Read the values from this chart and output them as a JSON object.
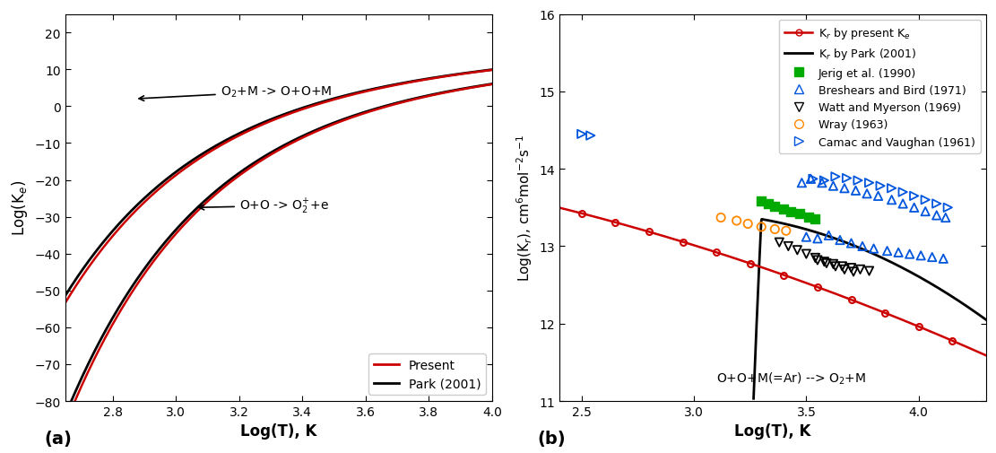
{
  "panel_a": {
    "xlim": [
      2.65,
      4.0
    ],
    "ylim": [
      -80,
      25
    ],
    "xlabel": "Log(T), K",
    "ylabel": "Log(K$_{e}$)",
    "xticks": [
      2.8,
      3.0,
      3.2,
      3.4,
      3.6,
      3.8,
      4.0
    ],
    "yticks": [
      -80,
      -70,
      -60,
      -50,
      -40,
      -30,
      -20,
      -10,
      0,
      10,
      20
    ],
    "label_a": "(a)",
    "legend_present": "Present",
    "legend_park": "Park (2001)",
    "annot1": "O$_{2}$+M -> O+O+M",
    "annot2": "O+O -> O$_{2}^{+}$+e"
  },
  "panel_b": {
    "xlim": [
      2.4,
      4.3
    ],
    "ylim": [
      11.0,
      16.0
    ],
    "xlabel": "Log(T), K",
    "ylabel": "Log(K$_{r}$), cm$^{6}$mol$^{-2}$s$^{-1}$",
    "xticks": [
      2.5,
      3.0,
      3.5,
      4.0
    ],
    "yticks": [
      11,
      12,
      13,
      14,
      15,
      16
    ],
    "label_b": "(b)",
    "annot_rxn": "O+O+M(=Ar) --> O$_{2}$+M"
  },
  "jerig_x": [
    3.3,
    3.33,
    3.36,
    3.4,
    3.43,
    3.47,
    3.51,
    3.54
  ],
  "jerig_y": [
    13.58,
    13.55,
    13.52,
    13.48,
    13.45,
    13.42,
    13.38,
    13.35
  ],
  "breshears_x": [
    3.48,
    3.52,
    3.57,
    3.62,
    3.67,
    3.72,
    3.77,
    3.82,
    3.88,
    3.93,
    3.98,
    4.03,
    4.08,
    4.12,
    3.5,
    3.55,
    3.6,
    3.65,
    3.7,
    3.75,
    3.8,
    3.86,
    3.91,
    3.96,
    4.01,
    4.06,
    4.11
  ],
  "breshears_y": [
    13.82,
    13.87,
    13.82,
    13.78,
    13.75,
    13.72,
    13.68,
    13.65,
    13.6,
    13.55,
    13.5,
    13.45,
    13.4,
    13.37,
    13.12,
    13.1,
    13.14,
    13.08,
    13.04,
    13.0,
    12.97,
    12.94,
    12.92,
    12.9,
    12.88,
    12.86,
    12.84
  ],
  "watt_x": [
    3.38,
    3.42,
    3.46,
    3.5,
    3.54,
    3.58,
    3.62,
    3.66,
    3.7,
    3.74,
    3.78,
    3.55,
    3.59,
    3.63,
    3.67,
    3.71
  ],
  "watt_y": [
    13.05,
    13.0,
    12.95,
    12.9,
    12.85,
    12.8,
    12.77,
    12.74,
    12.72,
    12.7,
    12.68,
    12.82,
    12.78,
    12.74,
    12.7,
    12.67
  ],
  "wray_x": [
    3.12,
    3.19,
    3.24,
    3.3,
    3.36,
    3.41
  ],
  "wray_y": [
    13.37,
    13.33,
    13.29,
    13.25,
    13.22,
    13.2
  ],
  "camac_x": [
    2.5,
    2.54,
    3.53,
    3.58,
    3.63,
    3.68,
    3.73,
    3.78,
    3.83,
    3.88,
    3.93,
    3.98,
    4.03,
    4.08,
    4.13
  ],
  "camac_y": [
    14.45,
    14.43,
    13.87,
    13.85,
    13.9,
    13.88,
    13.85,
    13.82,
    13.78,
    13.75,
    13.7,
    13.65,
    13.6,
    13.55,
    13.5
  ],
  "color_present": "#cc0000",
  "color_park": "#000000",
  "color_jerig": "#00aa00",
  "color_breshears": "#0055dd",
  "color_watt": "#000000",
  "color_wray": "#ff8800",
  "color_camac": "#0055dd"
}
